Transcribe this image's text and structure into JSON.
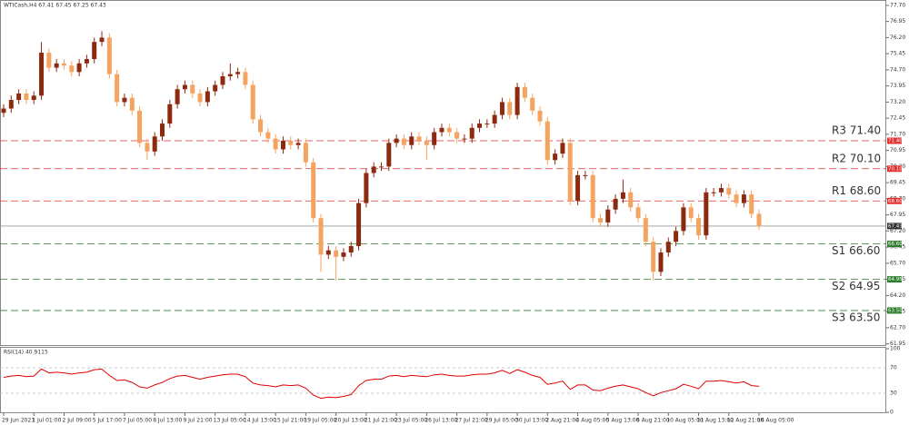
{
  "chart_data": {
    "type": "candlestick",
    "title": "WTICash,H4 67.41 67.45 67.25 67.43",
    "categories": [
      "29 Jun 2021",
      null,
      null,
      null,
      "1 Jul 01:00",
      null,
      null,
      null,
      "2 Jul 09:00",
      null,
      null,
      null,
      "5 Jul 17:00",
      null,
      null,
      null,
      "7 Jul 05:00",
      null,
      null,
      null,
      "8 Jul 13:00",
      null,
      null,
      null,
      "9 Jul 21:00",
      null,
      null,
      null,
      "13 Jul 05:00",
      null,
      null,
      null,
      "14 Jul 13:00",
      null,
      null,
      null,
      "15 Jul 21:00",
      null,
      null,
      null,
      "19 Jul 05:00",
      null,
      null,
      null,
      "20 Jul 13:00",
      null,
      null,
      null,
      "21 Jul 21:00",
      null,
      null,
      null,
      "23 Jul 05:00",
      null,
      null,
      null,
      "26 Jul 13:00",
      null,
      null,
      null,
      "27 Jul 21:00",
      null,
      null,
      null,
      "29 Jul 05:00",
      null,
      null,
      null,
      "30 Jul 13:00",
      null,
      null,
      null,
      "2 Aug 21:00",
      null,
      null,
      null,
      "4 Aug 05:00",
      null,
      null,
      null,
      "5 Aug 13:00",
      null,
      null,
      null,
      "6 Aug 21:00",
      null,
      null,
      null,
      "10 Aug 05:00",
      null,
      null,
      null,
      "11 Aug 13:00",
      null,
      null,
      null,
      "12 Aug 21:00",
      null,
      null,
      null,
      "16 Aug 05:00"
    ],
    "open": [
      72.7,
      72.9,
      73.3,
      73.6,
      73.3,
      73.5,
      75.5,
      74.8,
      75.0,
      74.9,
      74.6,
      75.0,
      75.2,
      76.0,
      76.2,
      74.5,
      73.2,
      73.4,
      72.8,
      71.3,
      70.9,
      71.6,
      72.2,
      73.1,
      73.8,
      74.0,
      73.6,
      73.2,
      73.7,
      74.0,
      74.4,
      74.5,
      74.6,
      74.0,
      72.4,
      71.8,
      71.5,
      71.0,
      71.4,
      71.2,
      71.3,
      70.4,
      67.8,
      66.1,
      66.3,
      66.0,
      66.2,
      66.5,
      68.5,
      69.9,
      70.2,
      70.2,
      71.3,
      71.5,
      71.2,
      71.6,
      71.4,
      71.2,
      71.8,
      72.0,
      71.8,
      71.5,
      71.5,
      72.0,
      72.2,
      72.2,
      72.6,
      73.2,
      72.6,
      73.9,
      73.4,
      72.8,
      72.3,
      70.5,
      70.8,
      71.3,
      68.6,
      69.8,
      69.8,
      67.8,
      67.6,
      68.2,
      68.7,
      69.0,
      68.3,
      67.8,
      66.7,
      65.3,
      66.2,
      66.7,
      67.2,
      68.3,
      67.8,
      67.0,
      69.0,
      69.0,
      69.2,
      68.9,
      68.5,
      68.9,
      68.0
    ],
    "high": [
      73.1,
      73.5,
      73.8,
      73.8,
      73.7,
      76.0,
      75.7,
      75.2,
      75.2,
      75.1,
      75.2,
      75.4,
      76.2,
      76.5,
      76.4,
      74.7,
      73.6,
      73.6,
      73.0,
      71.5,
      71.8,
      72.4,
      73.3,
      74.0,
      74.2,
      74.2,
      73.8,
      73.9,
      74.2,
      74.6,
      75.0,
      74.8,
      74.8,
      74.2,
      72.6,
      72.0,
      71.7,
      71.6,
      71.6,
      71.5,
      71.5,
      70.6,
      68.0,
      66.5,
      66.5,
      66.4,
      66.7,
      68.7,
      70.1,
      70.4,
      70.4,
      71.5,
      71.7,
      71.7,
      71.8,
      71.8,
      71.6,
      72.0,
      72.2,
      72.2,
      72.0,
      71.7,
      72.2,
      72.4,
      72.4,
      72.8,
      73.4,
      73.4,
      74.1,
      74.1,
      73.6,
      73.0,
      72.5,
      71.0,
      71.5,
      71.5,
      70.0,
      70.0,
      70.0,
      68.0,
      68.4,
      68.9,
      69.6,
      69.2,
      68.5,
      68.0,
      66.9,
      66.4,
      66.9,
      67.4,
      68.5,
      68.5,
      68.0,
      69.2,
      69.2,
      69.4,
      69.4,
      69.1,
      69.1,
      69.1,
      68.2
    ],
    "low": [
      72.5,
      72.7,
      73.1,
      73.1,
      73.1,
      73.3,
      74.6,
      74.6,
      74.7,
      74.4,
      74.4,
      74.8,
      75.0,
      75.8,
      74.3,
      73.0,
      73.0,
      72.6,
      71.1,
      70.5,
      70.7,
      71.4,
      72.0,
      72.9,
      73.6,
      73.4,
      73.0,
      73.0,
      73.5,
      73.8,
      74.2,
      74.3,
      73.8,
      72.2,
      71.6,
      71.3,
      70.8,
      70.8,
      71.0,
      71.0,
      70.2,
      67.6,
      65.3,
      65.9,
      64.9,
      65.8,
      66.0,
      66.3,
      68.3,
      69.7,
      70.0,
      70.0,
      71.1,
      71.0,
      71.0,
      71.2,
      70.5,
      71.0,
      71.6,
      71.6,
      71.3,
      71.3,
      71.3,
      71.8,
      72.0,
      72.0,
      72.4,
      72.4,
      72.4,
      73.2,
      72.6,
      72.1,
      70.3,
      70.3,
      70.6,
      68.4,
      68.4,
      69.6,
      67.6,
      67.4,
      67.4,
      68.0,
      68.5,
      68.1,
      67.6,
      66.5,
      64.9,
      65.1,
      66.0,
      66.5,
      67.0,
      67.6,
      66.8,
      66.8,
      68.8,
      68.8,
      68.7,
      68.3,
      68.3,
      67.8,
      67.25
    ],
    "close": [
      72.9,
      73.3,
      73.6,
      73.3,
      73.5,
      75.5,
      74.8,
      75.0,
      74.9,
      74.6,
      75.0,
      75.2,
      76.0,
      76.2,
      74.5,
      73.2,
      73.4,
      72.8,
      71.3,
      70.9,
      71.6,
      72.2,
      73.1,
      73.8,
      74.0,
      73.6,
      73.2,
      73.7,
      74.0,
      74.4,
      74.5,
      74.6,
      74.0,
      72.4,
      71.8,
      71.5,
      71.0,
      71.4,
      71.2,
      71.3,
      70.4,
      67.8,
      66.1,
      66.3,
      66.0,
      66.2,
      66.5,
      68.5,
      69.9,
      70.2,
      70.2,
      71.3,
      71.5,
      71.2,
      71.6,
      71.4,
      71.2,
      71.8,
      72.0,
      71.8,
      71.5,
      71.5,
      72.0,
      72.2,
      72.2,
      72.6,
      73.2,
      72.6,
      73.9,
      73.4,
      72.8,
      72.3,
      70.5,
      70.8,
      71.3,
      68.6,
      69.8,
      69.8,
      67.8,
      67.6,
      68.2,
      68.7,
      69.0,
      68.3,
      67.8,
      66.7,
      65.3,
      66.2,
      66.7,
      67.2,
      68.3,
      67.8,
      67.0,
      69.0,
      69.0,
      69.2,
      68.9,
      68.5,
      68.9,
      68.0,
      67.43
    ],
    "up_color": "#8b2a0e",
    "down_color": "#f4a460",
    "ylim": [
      61.85,
      77.95
    ],
    "yticks": [
      {
        "value": 77.7,
        "label": "77.70"
      },
      {
        "value": 76.95,
        "label": "76.95"
      },
      {
        "value": 76.2,
        "label": "76.20"
      },
      {
        "value": 75.45,
        "label": "75.45"
      },
      {
        "value": 74.7,
        "label": "74.70"
      },
      {
        "value": 73.95,
        "label": "73.95"
      },
      {
        "value": 73.2,
        "label": "73.20"
      },
      {
        "value": 72.45,
        "label": "72.45"
      },
      {
        "value": 71.7,
        "label": "71.70"
      },
      {
        "value": 70.95,
        "label": "70.95"
      },
      {
        "value": 70.2,
        "label": "70.20"
      },
      {
        "value": 69.45,
        "label": "69.45"
      },
      {
        "value": 68.7,
        "label": "68.70"
      },
      {
        "value": 67.95,
        "label": "67.95"
      },
      {
        "value": 67.2,
        "label": "67.20"
      },
      {
        "value": 66.45,
        "label": "66.45"
      },
      {
        "value": 65.7,
        "label": "65.70"
      },
      {
        "value": 64.95,
        "label": "64.95"
      },
      {
        "value": 64.2,
        "label": "64.20"
      },
      {
        "value": 63.45,
        "label": "63.45"
      },
      {
        "value": 62.7,
        "label": "62.70"
      },
      {
        "value": 61.95,
        "label": "61.95"
      }
    ],
    "levels": [
      {
        "label": "R3 71.40",
        "value": 71.4,
        "tag": "71.40",
        "color": "#e03030"
      },
      {
        "label": "R2 70.10",
        "value": 70.1,
        "tag": "70.10",
        "color": "#e03030"
      },
      {
        "label": "R1 68.60",
        "value": 68.6,
        "tag": "68.60",
        "color": "#e03030"
      },
      {
        "label": "S1 66.60",
        "value": 66.6,
        "tag": "66.60",
        "color": "#2e7d2e"
      },
      {
        "label": "S2 64.95",
        "value": 64.95,
        "tag": "64.95",
        "color": "#2e7d2e"
      },
      {
        "label": "S3 63.50",
        "value": 63.5,
        "tag": "63.50",
        "color": "#2e7d2e"
      }
    ],
    "last_price": {
      "value": 67.43,
      "tag": "67.43",
      "color": "#9a9a9a"
    },
    "rsi": {
      "type": "line",
      "title": "RSI(14) 40.9115",
      "color": "#e00000",
      "ylim": [
        0,
        100
      ],
      "yticks": [
        100,
        70,
        30,
        0
      ],
      "values": [
        55,
        57,
        58,
        56,
        57,
        68,
        62,
        63,
        62,
        60,
        62,
        63,
        67,
        68,
        58,
        50,
        51,
        47,
        40,
        38,
        43,
        47,
        53,
        57,
        58,
        55,
        52,
        55,
        57,
        59,
        60,
        60,
        56,
        46,
        43,
        42,
        40,
        43,
        42,
        43,
        38,
        27,
        22,
        24,
        23,
        25,
        28,
        42,
        50,
        52,
        52,
        57,
        58,
        56,
        58,
        57,
        56,
        59,
        60,
        58,
        57,
        57,
        59,
        60,
        60,
        62,
        66,
        61,
        67,
        63,
        58,
        55,
        44,
        46,
        49,
        36,
        43,
        43,
        35,
        34,
        38,
        41,
        43,
        40,
        37,
        31,
        26,
        31,
        34,
        37,
        44,
        41,
        37,
        49,
        49,
        50,
        48,
        46,
        48,
        42,
        40.9115
      ]
    }
  }
}
